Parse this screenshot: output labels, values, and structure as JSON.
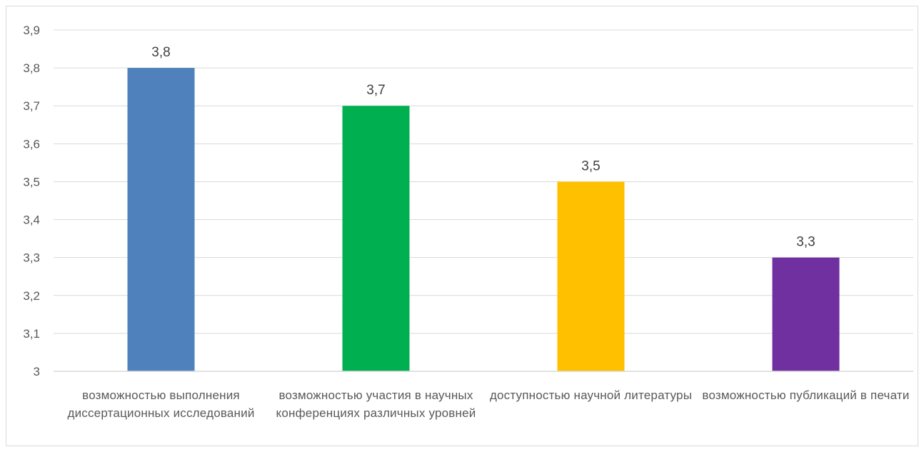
{
  "chart_data": {
    "type": "bar",
    "categories": [
      "возможностью выполнения диссертационных исследований",
      "возможностью участия в научных конференциях различных уровней",
      "доступностью научной литературы",
      "возможностью публикаций в печати"
    ],
    "values": [
      3.8,
      3.7,
      3.5,
      3.3
    ],
    "data_labels": [
      "3,8",
      "3,7",
      "3,5",
      "3,3"
    ],
    "bar_colors": [
      "#4f81bd",
      "#00b050",
      "#ffc000",
      "#7030a0"
    ],
    "y_ticks": [
      "3",
      "3,1",
      "3,2",
      "3,3",
      "3,4",
      "3,5",
      "3,6",
      "3,7",
      "3,8",
      "3,9"
    ],
    "ylim": [
      3,
      3.9
    ],
    "grid": true,
    "title": "",
    "xlabel": "",
    "ylabel": ""
  }
}
